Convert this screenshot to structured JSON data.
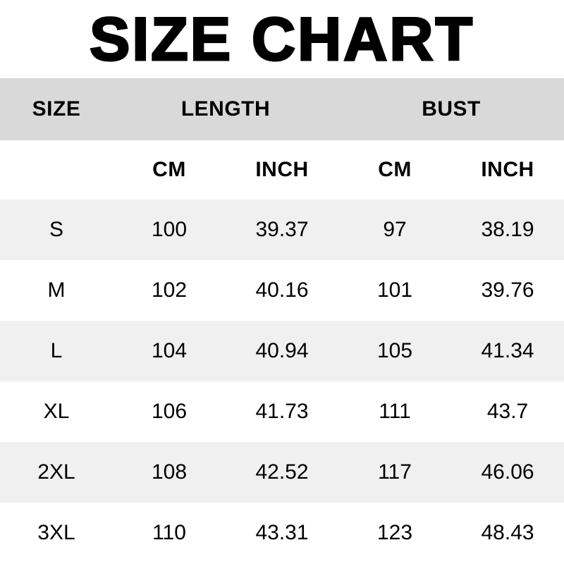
{
  "title": "SIZE CHART",
  "colors": {
    "page_bg": "#ffffff",
    "group_header_bg": "#d9d9d9",
    "zebra_row_bg": "#f0f0f0",
    "text": "#000000"
  },
  "chart_data": {
    "type": "table",
    "title": "SIZE CHART",
    "column_groups": [
      {
        "label": "SIZE",
        "span": 1
      },
      {
        "label": "LENGTH",
        "span": 2
      },
      {
        "label": "BUST",
        "span": 2
      }
    ],
    "unit_headers": [
      "CM",
      "INCH",
      "CM",
      "INCH"
    ],
    "columns": [
      "SIZE",
      "LENGTH CM",
      "LENGTH INCH",
      "BUST CM",
      "BUST INCH"
    ],
    "rows": [
      [
        "S",
        "100",
        "39.37",
        "97",
        "38.19"
      ],
      [
        "M",
        "102",
        "40.16",
        "101",
        "39.76"
      ],
      [
        "L",
        "104",
        "40.94",
        "105",
        "41.34"
      ],
      [
        "XL",
        "106",
        "41.73",
        "111",
        "43.7"
      ],
      [
        "2XL",
        "108",
        "42.52",
        "117",
        "46.06"
      ],
      [
        "3XL",
        "110",
        "43.31",
        "123",
        "48.43"
      ]
    ]
  }
}
